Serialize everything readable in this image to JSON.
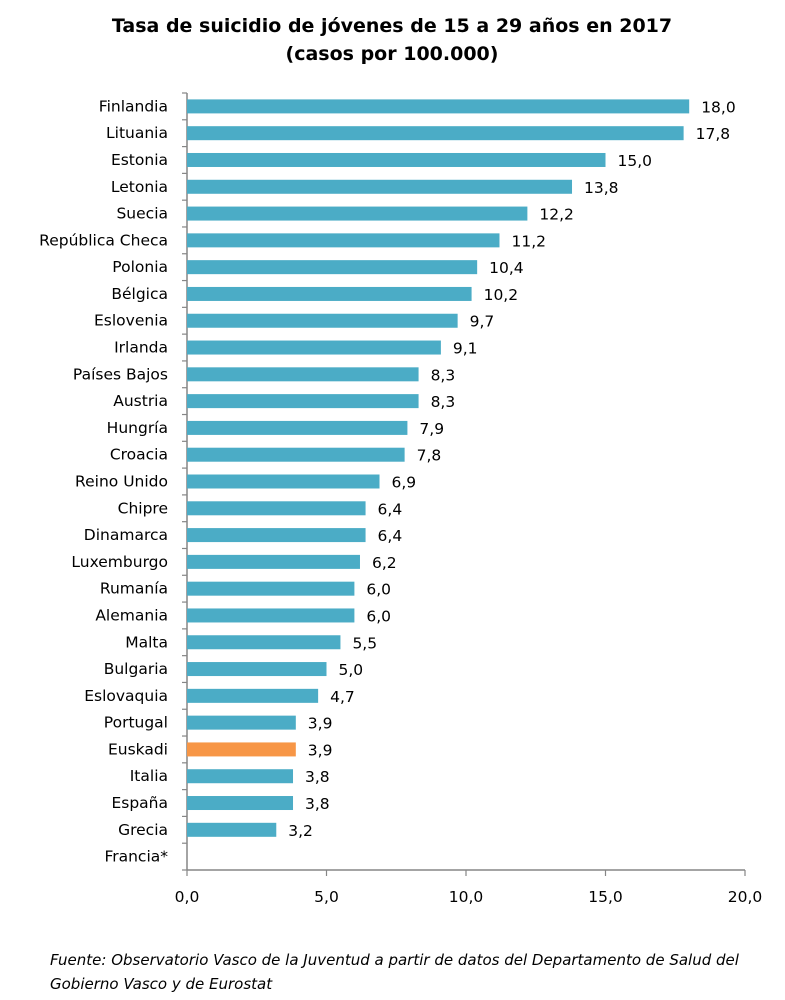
{
  "chart_data": {
    "type": "bar",
    "orientation": "horizontal",
    "title": [
      "Tasa de suicidio de jóvenes de 15 a 29 años en 2017",
      "(casos por 100.000)"
    ],
    "categories": [
      "Finlandia",
      "Lituania",
      "Estonia",
      "Letonia",
      "Suecia",
      "República Checa",
      "Polonia",
      "Bélgica",
      "Eslovenia",
      "Irlanda",
      "Países Bajos",
      "Austria",
      "Hungría",
      "Croacia",
      "Reino Unido",
      "Chipre",
      "Dinamarca",
      "Luxemburgo",
      "Rumanía",
      "Alemania",
      "Malta",
      "Bulgaria",
      "Eslovaquia",
      "Portugal",
      "Euskadi",
      "Italia",
      "España",
      "Grecia",
      "Francia*"
    ],
    "values": [
      18.0,
      17.8,
      15.0,
      13.8,
      12.2,
      11.2,
      10.4,
      10.2,
      9.7,
      9.1,
      8.3,
      8.3,
      7.9,
      7.8,
      6.9,
      6.4,
      6.4,
      6.2,
      6.0,
      6.0,
      5.5,
      5.0,
      4.7,
      3.9,
      3.9,
      3.8,
      3.8,
      3.2,
      null
    ],
    "value_labels": [
      "18,0",
      "17,8",
      "15,0",
      "13,8",
      "12,2",
      "11,2",
      "10,4",
      "10,2",
      "9,7",
      "9,1",
      "8,3",
      "8,3",
      "7,9",
      "7,8",
      "6,9",
      "6,4",
      "6,4",
      "6,2",
      "6,0",
      "6,0",
      "5,5",
      "5,0",
      "4,7",
      "3,9",
      "3,9",
      "3,8",
      "3,8",
      "3,2",
      ""
    ],
    "xlim": [
      0,
      20
    ],
    "xticks": [
      0,
      5,
      10,
      15,
      20
    ],
    "xtick_labels": [
      "0,0",
      "5,0",
      "10,0",
      "15,0",
      "20,0"
    ],
    "grid": false,
    "legend": "none",
    "colors": {
      "default": "#4BACC6",
      "highlight": "#F79646",
      "axis": "#868686"
    },
    "highlight_category": "Euskadi"
  },
  "source": "Fuente: Observatorio Vasco de la Juventud a partir de datos del Departamento de Salud del Gobierno Vasco y de Eurostat"
}
